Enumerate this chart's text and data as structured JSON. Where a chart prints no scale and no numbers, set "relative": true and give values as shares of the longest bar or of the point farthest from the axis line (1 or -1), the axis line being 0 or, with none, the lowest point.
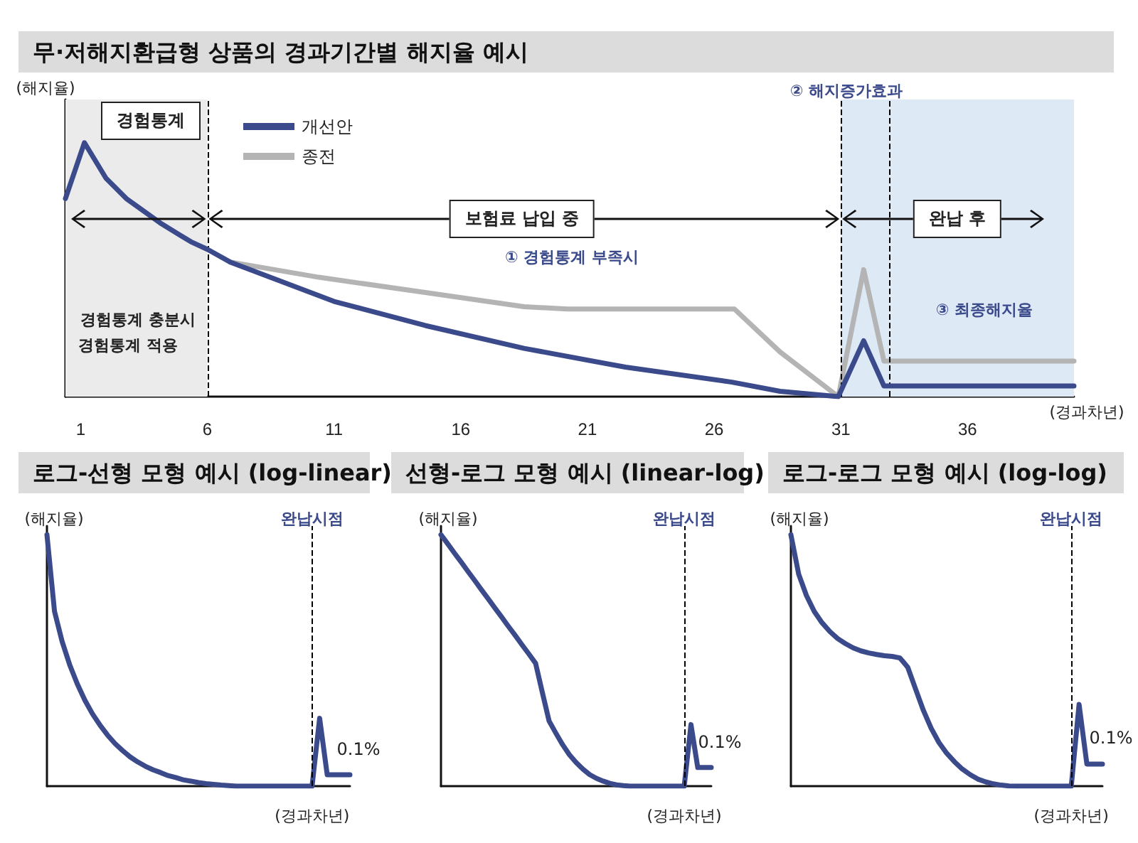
{
  "chart_data": [
    {
      "type": "line",
      "title": "무·저해지환급형 상품의 경과기간별 해지율 예시",
      "ylabel": "(해지율)",
      "xlabel": "(경과차년)",
      "relative": true,
      "xlim": [
        0.4,
        40.2
      ],
      "xticks": [
        1,
        6,
        11,
        16,
        21,
        26,
        31,
        36
      ],
      "tick_labels": "x",
      "legend": "top left",
      "marker": "none",
      "line_style": "solid",
      "series": [
        {
          "name": "개선안",
          "color": "#3b4a8b",
          "x": [
            0.4,
            1.15,
            2.0,
            2.8,
            4.2,
            5.35,
            6.0,
            6.9,
            11.0,
            14.6,
            18.5,
            22.5,
            26.7,
            28.6,
            30.9,
            31.9,
            32.7,
            40.2
          ],
          "values": [
            0.78,
            1.0,
            0.86,
            0.78,
            0.68,
            0.61,
            0.58,
            0.53,
            0.375,
            0.28,
            0.19,
            0.116,
            0.057,
            0.021,
            0,
            0.22,
            0.042,
            0.042
          ]
        },
        {
          "name": "종전",
          "color": "#b4b4b4",
          "x": [
            6.9,
            10.4,
            14.6,
            18.5,
            20.2,
            26.8,
            28.6,
            30.9,
            31.9,
            32.7,
            40.2
          ],
          "values": [
            0.53,
            0.47,
            0.41,
            0.354,
            0.345,
            0.345,
            0.176,
            0,
            0.5,
            0.14,
            0.14
          ]
        }
      ],
      "ref_lines": [
        {
          "axis": "x",
          "value": 6,
          "line_style": "dashed",
          "color": "#000000"
        },
        {
          "axis": "x",
          "value": 31,
          "line_style": "dashed",
          "color": "#000000"
        },
        {
          "axis": "x",
          "value": 32.9,
          "line_style": "dashed",
          "color": "#000000"
        }
      ],
      "bands": [
        {
          "axis": "x",
          "from": 0.4,
          "to": 6,
          "color": "#ebebeb"
        },
        {
          "axis": "x",
          "from": 31,
          "to": 40.2,
          "color": "#dee9f6"
        }
      ],
      "annotations": [
        "경험통계",
        "경험통계 충분시",
        "경험통계 적용",
        "보험료 납입 중",
        "완납 후",
        "① 경험통계 부족시",
        "② 해지증가효과",
        "③ 최종해지율"
      ]
    },
    {
      "type": "line",
      "title": "로그-선형 모형 예시 (log-linear)",
      "ylabel": "(해지율)",
      "xlabel": "(경과차년)",
      "relative": true,
      "tick_labels": false,
      "legend": false,
      "marker": "none",
      "line_style": "solid",
      "categories": [
        null,
        null,
        null,
        null,
        null,
        null,
        null,
        null,
        null,
        null,
        null,
        null,
        null,
        null,
        null,
        null,
        null,
        null,
        null,
        null,
        null,
        null,
        null,
        null,
        null,
        null,
        null,
        null,
        null,
        null,
        null,
        null,
        null,
        null,
        null,
        null,
        null,
        null,
        null,
        null,
        null
      ],
      "series": [
        {
          "color": "#3b4a8b",
          "values": [
            1.0,
            0.695,
            0.576,
            0.483,
            0.407,
            0.342,
            0.288,
            0.243,
            0.203,
            0.169,
            0.141,
            0.116,
            0.096,
            0.079,
            0.065,
            0.054,
            0.042,
            0.034,
            0.025,
            0.02,
            0.014,
            0.01,
            0.007,
            0.004,
            0.002,
            0,
            0,
            0,
            0,
            0,
            0,
            0,
            0,
            0,
            0,
            0,
            0.27,
            0.045,
            0.045,
            0.045,
            0.045
          ]
        }
      ],
      "annotations": [
        "완납시점",
        "0.1%"
      ]
    },
    {
      "type": "line",
      "title": "선형-로그 모형 예시 (linear-log)",
      "ylabel": "(해지율)",
      "xlabel": "(경과차년)",
      "relative": true,
      "tick_labels": false,
      "legend": false,
      "marker": "none",
      "line_style": "solid",
      "categories": [
        null,
        null,
        null,
        null,
        null,
        null,
        null,
        null,
        null,
        null,
        null,
        null,
        null,
        null,
        null,
        null,
        null,
        null,
        null,
        null,
        null,
        null,
        null,
        null,
        null,
        null,
        null,
        null,
        null,
        null,
        null,
        null,
        null,
        null,
        null,
        null,
        null,
        null,
        null,
        null,
        null
      ],
      "series": [
        {
          "color": "#3b4a8b",
          "values": [
            1.0,
            0.964,
            0.927,
            0.891,
            0.854,
            0.818,
            0.781,
            0.745,
            0.708,
            0.672,
            0.635,
            0.599,
            0.562,
            0.526,
            0.489,
            0.373,
            0.259,
            0.211,
            0.165,
            0.125,
            0.094,
            0.068,
            0.046,
            0.031,
            0.02,
            0.011,
            0.005,
            0.002,
            0,
            0,
            0,
            0,
            0,
            0,
            0,
            0,
            0,
            0.245,
            0.074,
            0.074,
            0.074
          ]
        }
      ],
      "annotations": [
        "완납시점",
        "0.1%"
      ]
    },
    {
      "type": "line",
      "title": "로그-로그 모형 예시 (log-log)",
      "ylabel": "(해지율)",
      "xlabel": "(경과차년)",
      "relative": true,
      "tick_labels": false,
      "legend": false,
      "marker": "none",
      "line_style": "solid",
      "categories": [
        null,
        null,
        null,
        null,
        null,
        null,
        null,
        null,
        null,
        null,
        null,
        null,
        null,
        null,
        null,
        null,
        null,
        null,
        null,
        null,
        null,
        null,
        null,
        null,
        null,
        null,
        null,
        null,
        null,
        null,
        null,
        null,
        null,
        null,
        null,
        null,
        null,
        null,
        null,
        null,
        null
      ],
      "series": [
        {
          "color": "#3b4a8b",
          "values": [
            1.0,
            0.843,
            0.758,
            0.695,
            0.65,
            0.615,
            0.587,
            0.567,
            0.55,
            0.538,
            0.53,
            0.524,
            0.519,
            0.516,
            0.51,
            0.473,
            0.387,
            0.302,
            0.231,
            0.174,
            0.131,
            0.097,
            0.068,
            0.046,
            0.028,
            0.017,
            0.009,
            0.004,
            0.001,
            0,
            0,
            0,
            0,
            0,
            0,
            0,
            0,
            0.325,
            0.088,
            0.088,
            0.088
          ]
        }
      ],
      "annotations": [
        "완납시점",
        "0.1%"
      ]
    }
  ]
}
